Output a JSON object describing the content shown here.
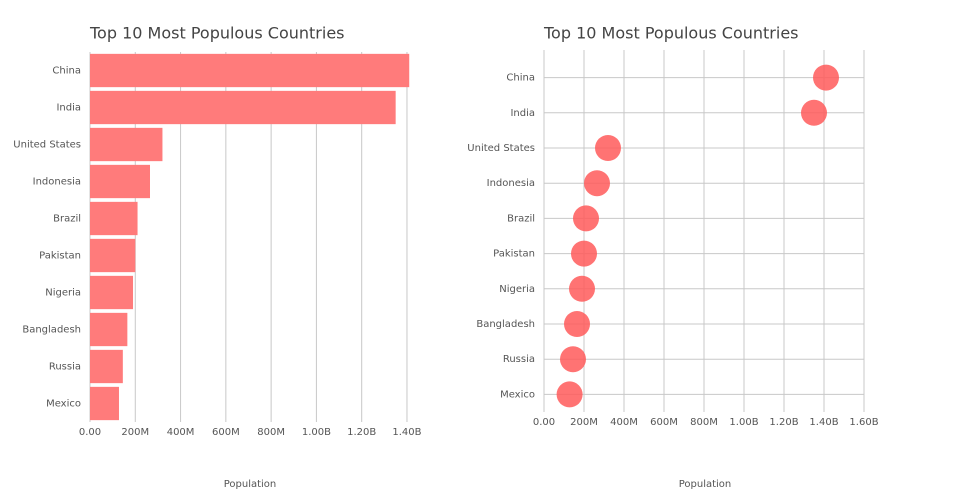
{
  "chart_data": [
    {
      "type": "bar",
      "title": "Top 10 Most Populous Countries",
      "x_label": "Population",
      "categories": [
        "China",
        "India",
        "United States",
        "Indonesia",
        "Brazil",
        "Pakistan",
        "Nigeria",
        "Bangladesh",
        "Russia",
        "Mexico"
      ],
      "values": [
        1410000000,
        1350000000,
        320000000,
        265000000,
        210000000,
        200000000,
        190000000,
        165000000,
        145000000,
        128000000
      ],
      "color": "#ff7b7b",
      "xlim": [
        0,
        1420000000
      ],
      "xticks": [
        {
          "value": 0,
          "label": "0.00"
        },
        {
          "value": 200000000,
          "label": "200M"
        },
        {
          "value": 400000000,
          "label": "400M"
        },
        {
          "value": 600000000,
          "label": "600M"
        },
        {
          "value": 800000000,
          "label": "800M"
        },
        {
          "value": 1000000000,
          "label": "1.00B"
        },
        {
          "value": 1200000000,
          "label": "1.20B"
        },
        {
          "value": 1400000000,
          "label": "1.40B"
        }
      ],
      "grid": "x"
    },
    {
      "type": "dot",
      "title": "Top 10 Most Populous Countries",
      "x_label": "Population",
      "categories": [
        "China",
        "India",
        "United States",
        "Indonesia",
        "Brazil",
        "Pakistan",
        "Nigeria",
        "Bangladesh",
        "Russia",
        "Mexico"
      ],
      "values": [
        1410000000,
        1350000000,
        320000000,
        265000000,
        210000000,
        200000000,
        190000000,
        165000000,
        145000000,
        128000000
      ],
      "color": "#ff5a5a",
      "xlim": [
        0,
        1600000000
      ],
      "xticks": [
        {
          "value": 0,
          "label": "0.00"
        },
        {
          "value": 200000000,
          "label": "200M"
        },
        {
          "value": 400000000,
          "label": "400M"
        },
        {
          "value": 600000000,
          "label": "600M"
        },
        {
          "value": 800000000,
          "label": "800M"
        },
        {
          "value": 1000000000,
          "label": "1.00B"
        },
        {
          "value": 1200000000,
          "label": "1.20B"
        },
        {
          "value": 1400000000,
          "label": "1.40B"
        },
        {
          "value": 1600000000,
          "label": "1.60B"
        }
      ],
      "grid": "xy"
    }
  ]
}
